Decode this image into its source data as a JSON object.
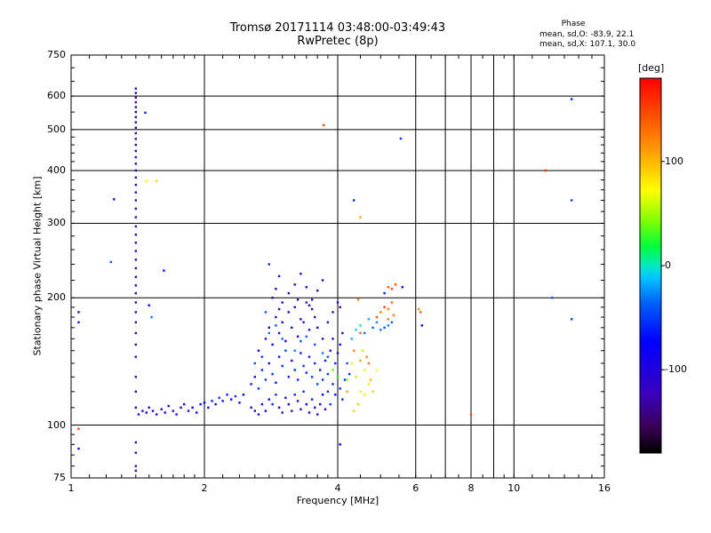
{
  "header": {
    "title_line1": "Tromsø 20171114 03:48:00-03:49:43",
    "title_line2": "RwPretec (8p)",
    "stats_title": "Phase",
    "stats_line1": "mean, sd,O: -83.9, 22.1",
    "stats_line2": "mean, sd,X: 107.1, 30.0"
  },
  "colorbar": {
    "label": "[deg]",
    "ticks": [
      "100",
      "0",
      "-100"
    ],
    "tick_values": [
      100,
      0,
      -100
    ],
    "range": [
      -180,
      180
    ]
  },
  "chart_data": {
    "type": "scatter",
    "xlabel": "Frequency [MHz]",
    "ylabel": "Stationary phase Virtual Height [km]",
    "xscale": "log",
    "yscale": "log",
    "xlim": [
      1,
      16
    ],
    "ylim": [
      75,
      750
    ],
    "x_ticks": [
      1,
      2,
      4,
      6,
      8,
      10,
      16
    ],
    "x_tick_labels": [
      "1",
      "2",
      "4",
      "6",
      "8",
      "10",
      "16"
    ],
    "y_ticks": [
      75,
      100,
      200,
      300,
      400,
      500,
      600,
      750
    ],
    "y_tick_labels": [
      "75",
      "100",
      "200",
      "300",
      "400",
      "500",
      "600",
      "750"
    ],
    "grid": true,
    "points": [
      [
        1.4,
        625,
        -110
      ],
      [
        1.4,
        610,
        -100
      ],
      [
        1.4,
        595,
        -120
      ],
      [
        1.4,
        580,
        -105
      ],
      [
        1.4,
        565,
        -115
      ],
      [
        1.4,
        550,
        -95
      ],
      [
        1.4,
        535,
        -110
      ],
      [
        1.4,
        520,
        -100
      ],
      [
        1.4,
        505,
        -120
      ],
      [
        1.4,
        490,
        -108
      ],
      [
        1.4,
        475,
        -112
      ],
      [
        1.4,
        460,
        -100
      ],
      [
        1.4,
        445,
        -118
      ],
      [
        1.4,
        430,
        -104
      ],
      [
        1.4,
        415,
        -110
      ],
      [
        1.4,
        400,
        -96
      ],
      [
        1.4,
        385,
        -112
      ],
      [
        1.4,
        370,
        -100
      ],
      [
        1.4,
        355,
        -120
      ],
      [
        1.4,
        340,
        -105
      ],
      [
        1.4,
        325,
        -110
      ],
      [
        1.4,
        310,
        -100
      ],
      [
        1.4,
        295,
        -115
      ],
      [
        1.4,
        282,
        -108
      ],
      [
        1.4,
        270,
        -120
      ],
      [
        1.4,
        258,
        -100
      ],
      [
        1.4,
        246,
        -110
      ],
      [
        1.4,
        235,
        -104
      ],
      [
        1.4,
        224,
        -116
      ],
      [
        1.4,
        214,
        -100
      ],
      [
        1.4,
        205,
        -112
      ],
      [
        1.4,
        195,
        -130
      ],
      [
        1.4,
        185,
        -110
      ],
      [
        1.4,
        175,
        -120
      ],
      [
        1.4,
        165,
        -125
      ],
      [
        1.4,
        155,
        -118
      ],
      [
        1.4,
        145,
        -115
      ],
      [
        1.4,
        130,
        -122
      ],
      [
        1.4,
        120,
        -116
      ],
      [
        1.4,
        110,
        -112
      ],
      [
        1.4,
        91,
        -118
      ],
      [
        1.4,
        86,
        -105
      ],
      [
        1.4,
        80,
        -120
      ],
      [
        1.4,
        78,
        -115
      ],
      [
        1.47,
        548,
        -60
      ],
      [
        1.48,
        378,
        70
      ],
      [
        1.56,
        378,
        90
      ],
      [
        1.25,
        342,
        -120
      ],
      [
        1.23,
        243,
        -40
      ],
      [
        1.62,
        232,
        -75
      ],
      [
        1.5,
        192,
        -70
      ],
      [
        1.52,
        180,
        -30
      ],
      [
        1.04,
        185,
        -130
      ],
      [
        1.04,
        175,
        -120
      ],
      [
        1.04,
        98,
        150
      ],
      [
        1.04,
        88,
        -110
      ],
      [
        1.42,
        106,
        -110
      ],
      [
        1.45,
        108,
        -100
      ],
      [
        1.48,
        107,
        -95
      ],
      [
        1.5,
        110,
        -105
      ],
      [
        1.53,
        108,
        -90
      ],
      [
        1.56,
        106,
        -100
      ],
      [
        1.6,
        109,
        -110
      ],
      [
        1.63,
        107,
        -95
      ],
      [
        1.66,
        111,
        -100
      ],
      [
        1.7,
        108,
        -120
      ],
      [
        1.73,
        106,
        -90
      ],
      [
        1.77,
        110,
        -100
      ],
      [
        1.8,
        112,
        -105
      ],
      [
        1.84,
        108,
        -95
      ],
      [
        1.88,
        110,
        -80
      ],
      [
        1.92,
        107,
        -100
      ],
      [
        1.96,
        112,
        -90
      ],
      [
        2,
        113,
        -70
      ],
      [
        2.04,
        110,
        -80
      ],
      [
        2.08,
        114,
        -60
      ],
      [
        2.12,
        112,
        -70
      ],
      [
        2.16,
        116,
        -55
      ],
      [
        2.2,
        114,
        -65
      ],
      [
        2.25,
        118,
        -60
      ],
      [
        2.3,
        115,
        -70
      ],
      [
        2.35,
        117,
        -50
      ],
      [
        2.4,
        113,
        -80
      ],
      [
        2.45,
        118,
        -70
      ],
      [
        2.55,
        110,
        -100
      ],
      [
        2.6,
        108,
        -110
      ],
      [
        2.65,
        106,
        -100
      ],
      [
        2.7,
        112,
        -95
      ],
      [
        2.75,
        108,
        -85
      ],
      [
        2.8,
        115,
        -70
      ],
      [
        2.85,
        112,
        -60
      ],
      [
        2.9,
        118,
        -55
      ],
      [
        2.95,
        110,
        -100
      ],
      [
        3,
        107,
        -110
      ],
      [
        3.05,
        116,
        -60
      ],
      [
        3.1,
        112,
        -95
      ],
      [
        3.15,
        108,
        -105
      ],
      [
        3.2,
        118,
        -60
      ],
      [
        3.25,
        114,
        -100
      ],
      [
        3.3,
        109,
        -110
      ],
      [
        3.35,
        120,
        -55
      ],
      [
        3.4,
        112,
        -95
      ],
      [
        3.45,
        107,
        -100
      ],
      [
        3.5,
        115,
        -60
      ],
      [
        3.55,
        110,
        -110
      ],
      [
        3.6,
        106,
        -120
      ],
      [
        3.65,
        112,
        -85
      ],
      [
        3.7,
        118,
        -70
      ],
      [
        3.75,
        109,
        -100
      ],
      [
        2.55,
        125,
        -60
      ],
      [
        2.6,
        130,
        -70
      ],
      [
        2.65,
        122,
        -55
      ],
      [
        2.7,
        135,
        -60
      ],
      [
        2.75,
        128,
        -50
      ],
      [
        2.8,
        140,
        -70
      ],
      [
        2.85,
        132,
        -55
      ],
      [
        2.9,
        126,
        -65
      ],
      [
        2.95,
        145,
        -60
      ],
      [
        3,
        138,
        -50
      ],
      [
        3.05,
        150,
        -45
      ],
      [
        3.1,
        130,
        -60
      ],
      [
        3.15,
        142,
        -70
      ],
      [
        3.2,
        135,
        -55
      ],
      [
        3.25,
        128,
        -60
      ],
      [
        3.3,
        148,
        -65
      ],
      [
        3.35,
        138,
        -50
      ],
      [
        3.4,
        133,
        -55
      ],
      [
        3.45,
        145,
        -60
      ],
      [
        3.5,
        130,
        -50
      ],
      [
        3.55,
        140,
        -60
      ],
      [
        3.6,
        125,
        -45
      ],
      [
        3.65,
        135,
        -65
      ],
      [
        3.7,
        128,
        -55
      ],
      [
        3.75,
        142,
        -60
      ],
      [
        3.8,
        132,
        -50
      ],
      [
        2.65,
        150,
        -100
      ],
      [
        2.75,
        160,
        -110
      ],
      [
        2.85,
        155,
        -95
      ],
      [
        2.95,
        165,
        -105
      ],
      [
        3.05,
        158,
        -90
      ],
      [
        3.15,
        170,
        -110
      ],
      [
        3.25,
        162,
        -100
      ],
      [
        3.35,
        175,
        -120
      ],
      [
        3.45,
        168,
        -100
      ],
      [
        3.55,
        180,
        -110
      ],
      [
        2.8,
        170,
        -100
      ],
      [
        2.9,
        180,
        -115
      ],
      [
        3,
        175,
        -110
      ],
      [
        3.1,
        185,
        -95
      ],
      [
        3.2,
        190,
        -120
      ],
      [
        3.3,
        178,
        -100
      ],
      [
        3.4,
        195,
        -125
      ],
      [
        3.5,
        188,
        -110
      ],
      [
        3.6,
        170,
        -100
      ],
      [
        3.7,
        160,
        -115
      ],
      [
        2.85,
        200,
        -120
      ],
      [
        2.9,
        210,
        -115
      ],
      [
        2.95,
        225,
        -110
      ],
      [
        3.1,
        205,
        -125
      ],
      [
        3.2,
        215,
        -120
      ],
      [
        3.3,
        228,
        -110
      ],
      [
        3.4,
        212,
        -125
      ],
      [
        3.5,
        198,
        -115
      ],
      [
        3.6,
        208,
        -110
      ],
      [
        3.7,
        220,
        -120
      ],
      [
        3,
        195,
        -125
      ],
      [
        2.8,
        240,
        -60
      ],
      [
        2.95,
        188,
        -130
      ],
      [
        3.25,
        198,
        -128
      ],
      [
        3.45,
        192,
        -120
      ],
      [
        2.7,
        145,
        -50
      ],
      [
        2.6,
        140,
        -40
      ],
      [
        2.8,
        165,
        -30
      ],
      [
        2.9,
        172,
        -40
      ],
      [
        3,
        160,
        -35
      ],
      [
        3.2,
        150,
        -30
      ],
      [
        3.3,
        158,
        -40
      ],
      [
        3.4,
        162,
        -35
      ],
      [
        3.55,
        155,
        -40
      ],
      [
        3.7,
        148,
        -30
      ],
      [
        3.8,
        145,
        -40
      ],
      [
        2.75,
        185,
        -40
      ],
      [
        3.8,
        120,
        -60
      ],
      [
        3.85,
        112,
        -50
      ],
      [
        3.9,
        125,
        -55
      ],
      [
        3.95,
        118,
        -70
      ],
      [
        4,
        130,
        -60
      ],
      [
        4.05,
        122,
        -55
      ],
      [
        4.1,
        115,
        -60
      ],
      [
        4.15,
        128,
        -50
      ],
      [
        4.2,
        140,
        -40
      ],
      [
        4.25,
        132,
        -55
      ],
      [
        3.85,
        150,
        -100
      ],
      [
        3.9,
        160,
        -90
      ],
      [
        3.95,
        140,
        -60
      ],
      [
        4,
        148,
        -105
      ],
      [
        4.05,
        155,
        -80
      ],
      [
        4.1,
        165,
        -95
      ],
      [
        3.8,
        175,
        -100
      ],
      [
        3.9,
        185,
        -110
      ],
      [
        4,
        195,
        -115
      ],
      [
        4.05,
        190,
        -125
      ],
      [
        3.9,
        135,
        40
      ],
      [
        4,
        130,
        30
      ],
      [
        4.2,
        128,
        50
      ],
      [
        4.3,
        140,
        60
      ],
      [
        4.4,
        130,
        50
      ],
      [
        4.5,
        120,
        80
      ],
      [
        4.6,
        135,
        65
      ],
      [
        4.7,
        125,
        80
      ],
      [
        4.55,
        150,
        55
      ],
      [
        4.65,
        145,
        120
      ],
      [
        4.7,
        140,
        130
      ],
      [
        4.5,
        142,
        110
      ],
      [
        4.75,
        128,
        100
      ],
      [
        4.8,
        120,
        90
      ],
      [
        4.6,
        118,
        80
      ],
      [
        4.45,
        112,
        95
      ],
      [
        4.35,
        108,
        90
      ],
      [
        4.9,
        135,
        70
      ],
      [
        4.3,
        160,
        -20
      ],
      [
        4.4,
        168,
        -10
      ],
      [
        4.5,
        172,
        0
      ],
      [
        4.6,
        165,
        -30
      ],
      [
        4.7,
        178,
        -20
      ],
      [
        4.8,
        170,
        -35
      ],
      [
        4.9,
        175,
        -25
      ],
      [
        5,
        168,
        -30
      ],
      [
        5.1,
        170,
        -40
      ],
      [
        5.2,
        172,
        -30
      ],
      [
        5.3,
        175,
        -40
      ],
      [
        4.9,
        180,
        140
      ],
      [
        5,
        185,
        130
      ],
      [
        5.1,
        190,
        150
      ],
      [
        5.2,
        188,
        120
      ],
      [
        5.3,
        195,
        135
      ],
      [
        5.2,
        178,
        130
      ],
      [
        5.35,
        182,
        125
      ],
      [
        5.1,
        205,
        -60
      ],
      [
        5.2,
        212,
        140
      ],
      [
        5.3,
        210,
        150
      ],
      [
        5.4,
        215,
        145
      ],
      [
        6.1,
        188,
        120
      ],
      [
        6.15,
        185,
        140
      ],
      [
        6.2,
        172,
        -110
      ],
      [
        5.6,
        212,
        -100
      ],
      [
        4.45,
        198,
        120
      ],
      [
        4.5,
        165,
        140
      ],
      [
        4.35,
        150,
        120
      ],
      [
        4.2,
        120,
        110
      ],
      [
        3.72,
        512,
        150
      ],
      [
        4.35,
        340,
        -60
      ],
      [
        4.5,
        310,
        110
      ],
      [
        5.55,
        476,
        -50
      ],
      [
        4.05,
        90,
        -75
      ],
      [
        8,
        106,
        150
      ],
      [
        11.8,
        400,
        160
      ],
      [
        12.2,
        200,
        -40
      ],
      [
        13.5,
        590,
        -60
      ],
      [
        13.5,
        340,
        -50
      ],
      [
        13.5,
        178,
        -50
      ]
    ]
  }
}
